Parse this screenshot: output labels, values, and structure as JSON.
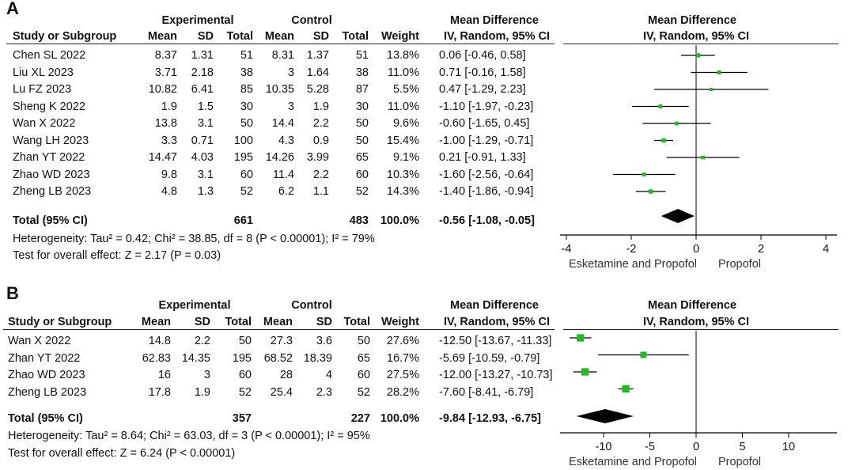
{
  "panels": [
    {
      "label": "A",
      "headers": {
        "group1": "Experimental",
        "group2": "Control",
        "md_title": "Mean Difference",
        "md_sub": "IV, Random, 95% CI",
        "plot_title": "Mean Difference",
        "plot_sub": "IV, Random, 95% CI",
        "study": "Study or Subgroup",
        "mean": "Mean",
        "sd": "SD",
        "total": "Total",
        "weight": "Weight"
      },
      "studies": [
        {
          "name": "Chen SL 2022",
          "e_mean": "8.37",
          "e_sd": "1.31",
          "e_total": "51",
          "c_mean": "8.31",
          "c_sd": "1.37",
          "c_total": "51",
          "weight": "13.8%",
          "ci_text": "0.06 [-0.46, 0.58]"
        },
        {
          "name": "Liu XL 2023",
          "e_mean": "3.71",
          "e_sd": "2.18",
          "e_total": "38",
          "c_mean": "3",
          "c_sd": "1.64",
          "c_total": "38",
          "weight": "11.0%",
          "ci_text": "0.71 [-0.16, 1.58]"
        },
        {
          "name": "Lu FZ 2023",
          "e_mean": "10.82",
          "e_sd": "6.41",
          "e_total": "85",
          "c_mean": "10.35",
          "c_sd": "5.28",
          "c_total": "87",
          "weight": "5.5%",
          "ci_text": "0.47 [-1.29, 2.23]"
        },
        {
          "name": "Sheng K 2022",
          "e_mean": "1.9",
          "e_sd": "1.5",
          "e_total": "30",
          "c_mean": "3",
          "c_sd": "1.9",
          "c_total": "30",
          "weight": "11.0%",
          "ci_text": "-1.10 [-1.97, -0.23]"
        },
        {
          "name": "Wan X 2022",
          "e_mean": "13.8",
          "e_sd": "3.1",
          "e_total": "50",
          "c_mean": "14.4",
          "c_sd": "2.2",
          "c_total": "50",
          "weight": "9.6%",
          "ci_text": "-0.60 [-1.65, 0.45]"
        },
        {
          "name": "Wang LH 2023",
          "e_mean": "3.3",
          "e_sd": "0.71",
          "e_total": "100",
          "c_mean": "4.3",
          "c_sd": "0.9",
          "c_total": "50",
          "weight": "15.4%",
          "ci_text": "-1.00 [-1.29, -0.71]"
        },
        {
          "name": "Zhan YT 2022",
          "e_mean": "14.47",
          "e_sd": "4.03",
          "e_total": "195",
          "c_mean": "14.26",
          "c_sd": "3.99",
          "c_total": "65",
          "weight": "9.1%",
          "ci_text": "0.21 [-0.91, 1.33]"
        },
        {
          "name": "Zhao WD 2023",
          "e_mean": "9.8",
          "e_sd": "3.1",
          "e_total": "60",
          "c_mean": "11.4",
          "c_sd": "2.2",
          "c_total": "60",
          "weight": "10.3%",
          "ci_text": "-1.60 [-2.56, -0.64]"
        },
        {
          "name": "Zheng LB 2023",
          "e_mean": "4.8",
          "e_sd": "1.3",
          "e_total": "52",
          "c_mean": "6.2",
          "c_sd": "1.1",
          "c_total": "52",
          "weight": "14.3%",
          "ci_text": "-1.40 [-1.86, -0.94]"
        }
      ],
      "total": {
        "label": "Total (95% CI)",
        "e_total": "661",
        "c_total": "483",
        "weight": "100.0%",
        "ci_text": "-0.56 [-1.08, -0.05]"
      },
      "heterogeneity": "Heterogeneity: Tau² = 0.42; Chi² = 38.85, df = 8 (P < 0.00001); I² = 79%",
      "overall": "Test for overall effect: Z = 2.17 (P = 0.03)",
      "favours_left": "Esketamine and Propofol",
      "favours_right": "Propofol"
    },
    {
      "label": "B",
      "headers": {
        "group1": "Experimental",
        "group2": "Control",
        "md_title": "Mean Difference",
        "md_sub": "IV, Random, 95% CI",
        "plot_title": "Mean Difference",
        "plot_sub": "IV, Random, 95% CI",
        "study": "Study or Subgroup",
        "mean": "Mean",
        "sd": "SD",
        "total": "Total",
        "weight": "Weight"
      },
      "studies": [
        {
          "name": "Wan X 2022",
          "e_mean": "14.8",
          "e_sd": "2.2",
          "e_total": "50",
          "c_mean": "27.3",
          "c_sd": "3.6",
          "c_total": "50",
          "weight": "27.6%",
          "ci_text": "-12.50 [-13.67, -11.33]"
        },
        {
          "name": "Zhan YT 2022",
          "e_mean": "62.83",
          "e_sd": "14.35",
          "e_total": "195",
          "c_mean": "68.52",
          "c_sd": "18.39",
          "c_total": "65",
          "weight": "16.7%",
          "ci_text": "-5.69 [-10.59, -0.79]"
        },
        {
          "name": "Zhao WD 2023",
          "e_mean": "16",
          "e_sd": "3",
          "e_total": "60",
          "c_mean": "28",
          "c_sd": "4",
          "c_total": "60",
          "weight": "27.5%",
          "ci_text": "-12.00 [-13.27, -10.73]"
        },
        {
          "name": "Zheng LB 2023",
          "e_mean": "17.8",
          "e_sd": "1.9",
          "e_total": "52",
          "c_mean": "25.4",
          "c_sd": "2.3",
          "c_total": "52",
          "weight": "28.2%",
          "ci_text": "-7.60 [-8.41, -6.79]"
        }
      ],
      "total": {
        "label": "Total (95% CI)",
        "e_total": "357",
        "c_total": "227",
        "weight": "100.0%",
        "ci_text": "-9.84 [-12.93, -6.75]"
      },
      "heterogeneity": "Heterogeneity: Tau² = 8.64; Chi² = 63.03, df = 3 (P < 0.00001); I² = 95%",
      "overall": "Test for overall effect: Z = 6.24 (P < 0.00001)",
      "favours_left": "Esketamine and Propofol",
      "favours_right": "Propofol"
    }
  ],
  "colors": {
    "marker": "#22bb22",
    "diamond": "#000000",
    "line": "#000000"
  },
  "chart_data": [
    {
      "type": "forest",
      "panel": "A",
      "title": "Mean Difference IV, Random, 95% CI",
      "xlim": [
        -4,
        4
      ],
      "xticks": [
        -4,
        -2,
        0,
        2,
        4
      ],
      "studies": [
        "Chen SL 2022",
        "Liu XL 2023",
        "Lu FZ 2023",
        "Sheng K 2022",
        "Wan X 2022",
        "Wang LH 2023",
        "Zhan YT 2022",
        "Zhao WD 2023",
        "Zheng LB 2023"
      ],
      "md": [
        0.06,
        0.71,
        0.47,
        -1.1,
        -0.6,
        -1.0,
        0.21,
        -1.6,
        -1.4
      ],
      "lower": [
        -0.46,
        -0.16,
        -1.29,
        -1.97,
        -1.65,
        -1.29,
        -0.91,
        -2.56,
        -1.86
      ],
      "upper": [
        0.58,
        1.58,
        2.23,
        -0.23,
        0.45,
        -0.71,
        1.33,
        -0.64,
        -0.94
      ],
      "weights": [
        13.8,
        11.0,
        5.5,
        11.0,
        9.6,
        15.4,
        9.1,
        10.3,
        14.3
      ],
      "pooled": {
        "md": -0.56,
        "lower": -1.08,
        "upper": -0.05
      },
      "xlabel_left": "Esketamine and Propofol",
      "xlabel_right": "Propofol"
    },
    {
      "type": "forest",
      "panel": "B",
      "title": "Mean Difference IV, Random, 95% CI",
      "xlim": [
        -15,
        15
      ],
      "xticks": [
        -10,
        -5,
        0,
        5,
        10
      ],
      "studies": [
        "Wan X 2022",
        "Zhan YT 2022",
        "Zhao WD 2023",
        "Zheng LB 2023"
      ],
      "md": [
        -12.5,
        -5.69,
        -12.0,
        -7.6
      ],
      "lower": [
        -13.67,
        -10.59,
        -13.27,
        -8.41
      ],
      "upper": [
        -11.33,
        -0.79,
        -10.73,
        -6.79
      ],
      "weights": [
        27.6,
        16.7,
        27.5,
        28.2
      ],
      "pooled": {
        "md": -9.84,
        "lower": -12.93,
        "upper": -6.75
      },
      "xlabel_left": "Esketamine and Propofol",
      "xlabel_right": "Propofol"
    }
  ]
}
